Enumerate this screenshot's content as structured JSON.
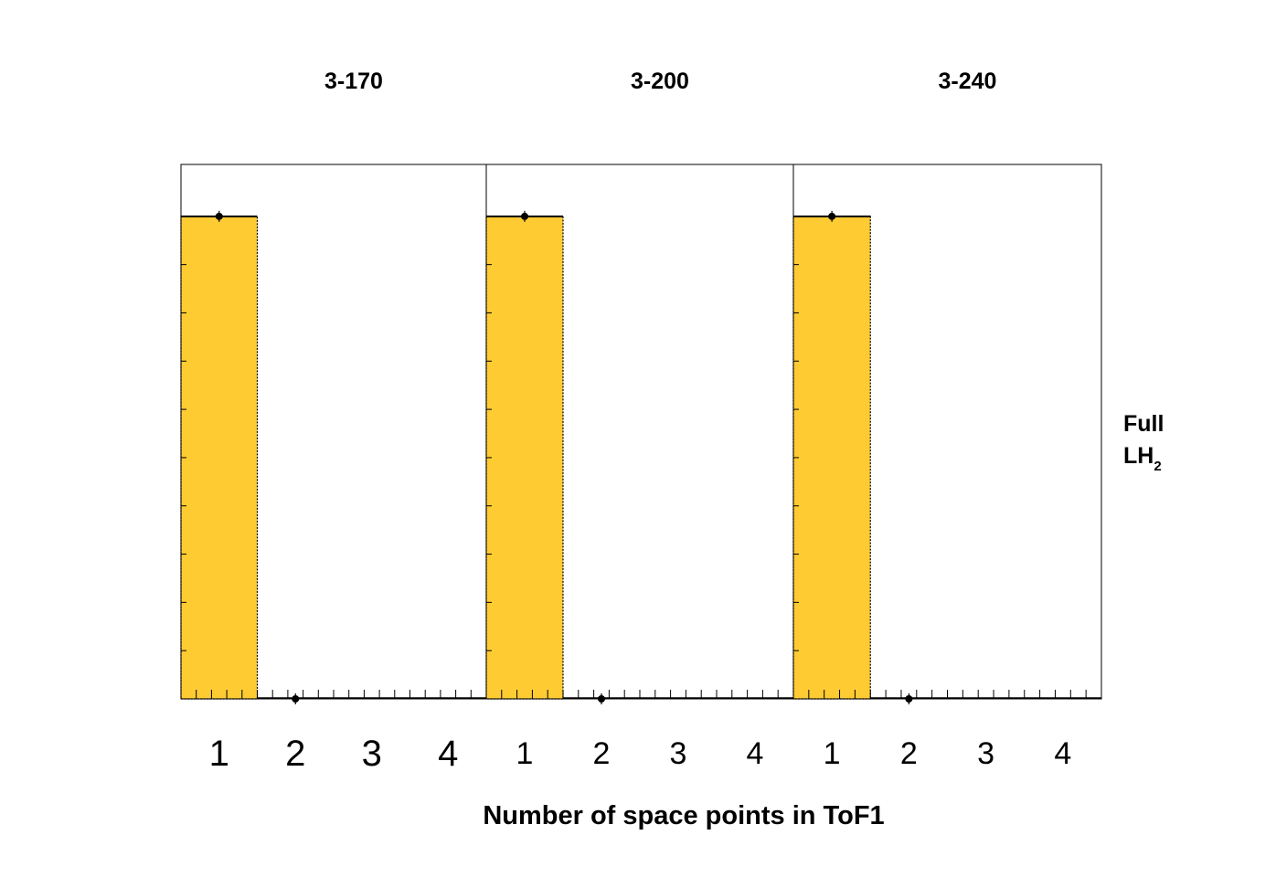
{
  "chart_data": {
    "type": "bar",
    "xlabel": "Number of space points in ToF1",
    "side_label": {
      "line1": "Full",
      "line2_main": "LH",
      "line2_sub": "2"
    },
    "panels": [
      {
        "title": "3-170",
        "categories": [
          "1",
          "2",
          "3",
          "4"
        ],
        "values": [
          1.0,
          0.0,
          0.0,
          0.0
        ],
        "markers": [
          1.0,
          0.0,
          null,
          null
        ]
      },
      {
        "title": "3-200",
        "categories": [
          "1",
          "2",
          "3",
          "4"
        ],
        "values": [
          1.0,
          0.0,
          0.0,
          0.0
        ],
        "markers": [
          1.0,
          0.0,
          null,
          null
        ]
      },
      {
        "title": "3-240",
        "categories": [
          "1",
          "2",
          "3",
          "4"
        ],
        "values": [
          1.0,
          0.0,
          0.0,
          0.0
        ],
        "markers": [
          1.0,
          0.0,
          null,
          null
        ]
      }
    ],
    "xlim": [
      0.5,
      4.5
    ],
    "ylim": [
      0,
      1.1
    ],
    "colors": {
      "bar_fill": "#fecb33",
      "bar_edge": "#000000",
      "marker": "#000000",
      "frame": "#000000"
    },
    "grid": false,
    "legend": "none"
  }
}
